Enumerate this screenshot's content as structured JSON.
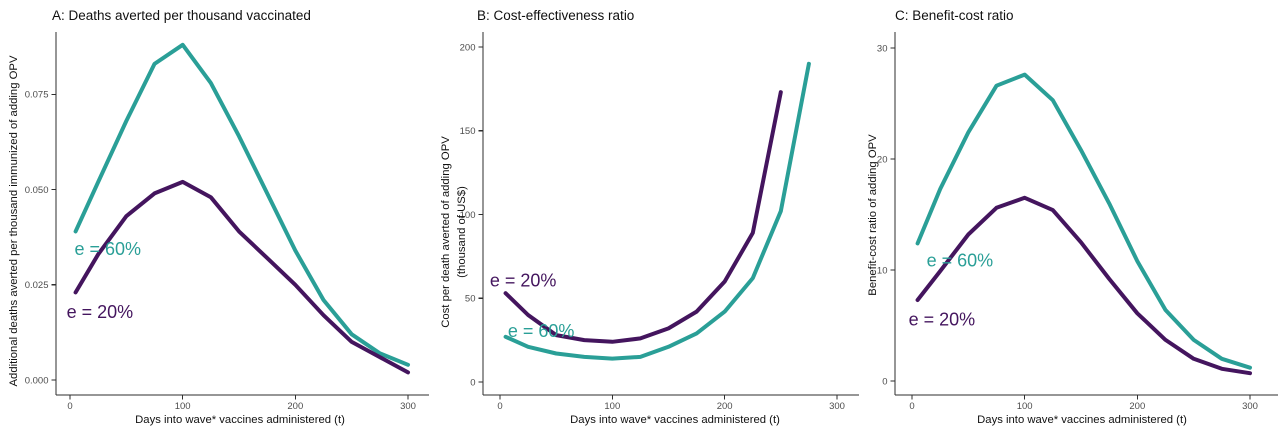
{
  "figure": {
    "background": "#ffffff",
    "accent_teal": "#2a9f97",
    "accent_purple": "#44155e"
  },
  "chart_data": [
    {
      "type": "line",
      "panel": "A",
      "title": "A: Deaths averted per thousand vaccinated",
      "xlabel": "Days into wave* vaccines administered (t)",
      "ylabel": "Additional deaths averted per thousand immunized of adding OPV",
      "xlim": [
        -12,
        318
      ],
      "ylim": [
        -0.004,
        0.0925
      ],
      "grid": false,
      "legend_position": "in-plot-annotations",
      "xticks": [
        0,
        100,
        200,
        300
      ],
      "yticks": [
        {
          "value": 0,
          "label": "0.000"
        },
        {
          "value": 0.025,
          "label": "0.025"
        },
        {
          "value": 0.05,
          "label": "0.050"
        },
        {
          "value": 0.075,
          "label": "0.075"
        }
      ],
      "x": [
        5,
        25,
        50,
        75,
        100,
        125,
        150,
        175,
        200,
        225,
        250,
        275,
        300
      ],
      "series": [
        {
          "name": "e = 60%",
          "color": "#2a9f97",
          "values": [
            0.039,
            0.052,
            0.068,
            0.083,
            0.088,
            0.078,
            0.064,
            0.049,
            0.034,
            0.021,
            0.012,
            0.007,
            0.004
          ]
        },
        {
          "name": "e = 20%",
          "color": "#44155e",
          "values": [
            0.023,
            0.033,
            0.043,
            0.049,
            0.052,
            0.048,
            0.039,
            0.032,
            0.025,
            0.017,
            0.01,
            0.006,
            0.002
          ]
        }
      ],
      "annotations": [
        {
          "text": "e = 60%",
          "x": 4,
          "y": 0.0328,
          "color": "#2a9f97"
        },
        {
          "text": "e = 20%",
          "x": -3,
          "y": 0.0163,
          "color": "#44155e"
        }
      ]
    },
    {
      "type": "line",
      "panel": "B",
      "title": "B: Cost-effectiveness ratio",
      "xlabel": "Days into wave* vaccines administered (t)",
      "ylabel": "Cost per death averted of adding OPV",
      "ylabel2": "(thousand of US$)",
      "xlim": [
        -12,
        318
      ],
      "ylim": [
        -10,
        205
      ],
      "grid": false,
      "legend_position": "in-plot-annotations",
      "xticks": [
        0,
        100,
        200,
        300
      ],
      "yticks": [
        {
          "value": 0,
          "label": "0"
        },
        {
          "value": 50,
          "label": "50"
        },
        {
          "value": 100,
          "label": "100"
        },
        {
          "value": 150,
          "label": "150"
        },
        {
          "value": 200,
          "label": "200"
        }
      ],
      "series": [
        {
          "name": "e = 20%",
          "color": "#44155e",
          "x": [
            5,
            25,
            50,
            75,
            100,
            125,
            150,
            175,
            200,
            225,
            250
          ],
          "values": [
            53,
            40,
            28,
            25,
            24,
            26,
            32,
            42,
            60,
            89,
            173
          ]
        },
        {
          "name": "e = 60%",
          "color": "#2a9f97",
          "x": [
            5,
            25,
            50,
            75,
            100,
            125,
            150,
            175,
            200,
            225,
            250,
            275
          ],
          "values": [
            27,
            21,
            17,
            15,
            14,
            15,
            21,
            29,
            42,
            62,
            102,
            190
          ]
        }
      ],
      "annotations": [
        {
          "text": "e = 20%",
          "x": -9,
          "y": 57,
          "color": "#44155e"
        },
        {
          "text": "e = 60%",
          "x": 7,
          "y": 27,
          "color": "#2a9f97"
        }
      ]
    },
    {
      "type": "line",
      "panel": "C",
      "title": "C: Benefit-cost ratio",
      "xlabel": "Days into wave* vaccines administered (t)",
      "ylabel": "Benefit-cost ratio of adding OPV",
      "xlim": [
        -12,
        318
      ],
      "ylim": [
        -1.5,
        31
      ],
      "grid": false,
      "legend_position": "in-plot-annotations",
      "xticks": [
        0,
        100,
        200,
        300
      ],
      "yticks": [
        {
          "value": 0,
          "label": "0"
        },
        {
          "value": 10,
          "label": "10"
        },
        {
          "value": 20,
          "label": "20"
        },
        {
          "value": 30,
          "label": "30"
        }
      ],
      "x": [
        5,
        25,
        50,
        75,
        100,
        125,
        150,
        175,
        200,
        225,
        250,
        275,
        300
      ],
      "series": [
        {
          "name": "e = 60%",
          "color": "#2a9f97",
          "values": [
            12.4,
            17.3,
            22.4,
            26.6,
            27.6,
            25.3,
            20.8,
            16.0,
            10.8,
            6.4,
            3.7,
            2.0,
            1.2
          ]
        },
        {
          "name": "e = 20%",
          "color": "#44155e",
          "values": [
            7.3,
            9.9,
            13.2,
            15.6,
            16.5,
            15.4,
            12.5,
            9.2,
            6.1,
            3.7,
            2.0,
            1.1,
            0.7
          ]
        }
      ],
      "annotations": [
        {
          "text": "e = 60%",
          "x": 13,
          "y": 10.3,
          "color": "#2a9f97"
        },
        {
          "text": "e = 20%",
          "x": -3,
          "y": 5.0,
          "color": "#44155e"
        }
      ]
    }
  ]
}
